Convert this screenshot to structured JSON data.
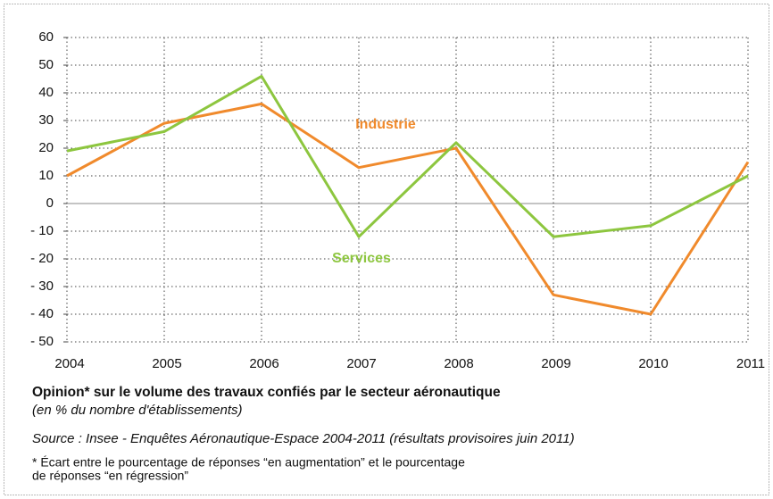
{
  "chart_data": {
    "type": "line",
    "title": "Opinion* sur le volume des travaux confiés par le secteur aéronautique",
    "subtitle": "(en % du nombre d'établissements)",
    "source": "Source : Insee - Enquêtes Aéronautique-Espace 2004-2011 (résultats provisoires juin 2011)",
    "note": [
      "* Écart entre le pourcentage de réponses “en augmentation” et le pourcentage",
      "de réponses “en régression”"
    ],
    "x": [
      2004,
      2005,
      2006,
      2007,
      2008,
      2009,
      2010,
      2011
    ],
    "series": [
      {
        "name": "Industrie",
        "color": "#f08a2c",
        "values": [
          10,
          29,
          36,
          13,
          20,
          -33,
          -40,
          15
        ]
      },
      {
        "name": "Services",
        "color": "#8dc63f",
        "values": [
          19,
          26,
          46,
          -12,
          22,
          -12,
          -8,
          10
        ]
      }
    ],
    "xlim": [
      2004,
      2011
    ],
    "xticks": [
      2004,
      2005,
      2006,
      2007,
      2008,
      2009,
      2010,
      2011
    ],
    "ylim": [
      -50,
      60
    ],
    "yticks": [
      {
        "value": -50,
        "label": "- 50"
      },
      {
        "value": -40,
        "label": "- 40"
      },
      {
        "value": -30,
        "label": "- 30"
      },
      {
        "value": -20,
        "label": "- 20"
      },
      {
        "value": -10,
        "label": "- 10"
      },
      0,
      10,
      20,
      30,
      40,
      50,
      60
    ],
    "grid": true
  }
}
